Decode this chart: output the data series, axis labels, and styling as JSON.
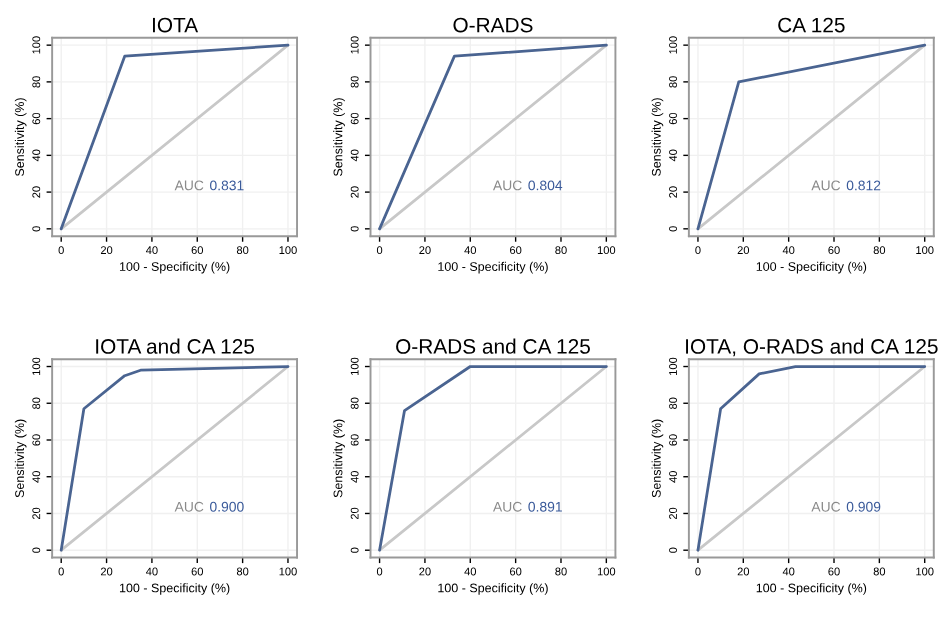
{
  "chart_data": [
    {
      "type": "line",
      "title": "IOTA",
      "xlabel": "100 - Specificity (%)",
      "ylabel": "Sensitivity (%)",
      "xlim": [
        -4,
        104
      ],
      "ylim": [
        -4,
        104
      ],
      "xticks": [
        0,
        20,
        40,
        60,
        80,
        100
      ],
      "yticks": [
        0,
        20,
        40,
        60,
        80,
        100
      ],
      "grid": true,
      "annotations": [
        "AUC",
        "0.831"
      ],
      "series": [
        {
          "x": [
            0,
            100
          ],
          "values": [
            0,
            100
          ],
          "color": "#c8c8c8"
        },
        {
          "x": [
            0,
            28,
            100
          ],
          "values": [
            0,
            94,
            100
          ],
          "color": "#4a6491"
        }
      ]
    },
    {
      "type": "line",
      "title": "O-RADS",
      "xlabel": "100 - Specificity (%)",
      "ylabel": "Sensitivity (%)",
      "xlim": [
        -4,
        104
      ],
      "ylim": [
        -4,
        104
      ],
      "xticks": [
        0,
        20,
        40,
        60,
        80,
        100
      ],
      "yticks": [
        0,
        20,
        40,
        60,
        80,
        100
      ],
      "grid": true,
      "annotations": [
        "AUC",
        "0.804"
      ],
      "series": [
        {
          "x": [
            0,
            100
          ],
          "values": [
            0,
            100
          ],
          "color": "#c8c8c8"
        },
        {
          "x": [
            0,
            33,
            100
          ],
          "values": [
            0,
            94,
            100
          ],
          "color": "#4a6491"
        }
      ]
    },
    {
      "type": "line",
      "title": "CA 125",
      "xlabel": "100 - Specificity (%)",
      "ylabel": "Sensitivity (%)",
      "xlim": [
        -4,
        104
      ],
      "ylim": [
        -4,
        104
      ],
      "xticks": [
        0,
        20,
        40,
        60,
        80,
        100
      ],
      "yticks": [
        0,
        20,
        40,
        60,
        80,
        100
      ],
      "grid": true,
      "annotations": [
        "AUC",
        "0.812"
      ],
      "series": [
        {
          "x": [
            0,
            100
          ],
          "values": [
            0,
            100
          ],
          "color": "#c8c8c8"
        },
        {
          "x": [
            0,
            18,
            100
          ],
          "values": [
            0,
            80,
            100
          ],
          "color": "#4a6491"
        }
      ]
    },
    {
      "type": "line",
      "title": "IOTA and CA 125",
      "xlabel": "100 - Specificity (%)",
      "ylabel": "Sensitivity (%)",
      "xlim": [
        -4,
        104
      ],
      "ylim": [
        -4,
        104
      ],
      "xticks": [
        0,
        20,
        40,
        60,
        80,
        100
      ],
      "yticks": [
        0,
        20,
        40,
        60,
        80,
        100
      ],
      "grid": true,
      "annotations": [
        "AUC",
        "0.900"
      ],
      "series": [
        {
          "x": [
            0,
            100
          ],
          "values": [
            0,
            100
          ],
          "color": "#c8c8c8"
        },
        {
          "x": [
            0,
            10,
            28,
            35,
            100
          ],
          "values": [
            0,
            77,
            95,
            98,
            100
          ],
          "color": "#4a6491"
        }
      ]
    },
    {
      "type": "line",
      "title": "O-RADS and CA 125",
      "xlabel": "100 - Specificity (%)",
      "ylabel": "Sensitivity (%)",
      "xlim": [
        -4,
        104
      ],
      "ylim": [
        -4,
        104
      ],
      "xticks": [
        0,
        20,
        40,
        60,
        80,
        100
      ],
      "yticks": [
        0,
        20,
        40,
        60,
        80,
        100
      ],
      "grid": true,
      "annotations": [
        "AUC",
        "0.891"
      ],
      "series": [
        {
          "x": [
            0,
            100
          ],
          "values": [
            0,
            100
          ],
          "color": "#c8c8c8"
        },
        {
          "x": [
            0,
            11,
            40,
            100
          ],
          "values": [
            0,
            76,
            100,
            100
          ],
          "color": "#4a6491"
        }
      ]
    },
    {
      "type": "line",
      "title": "IOTA, O-RADS and CA 125",
      "xlabel": "100 - Specificity (%)",
      "ylabel": "Sensitivity (%)",
      "xlim": [
        -4,
        104
      ],
      "ylim": [
        -4,
        104
      ],
      "xticks": [
        0,
        20,
        40,
        60,
        80,
        100
      ],
      "yticks": [
        0,
        20,
        40,
        60,
        80,
        100
      ],
      "grid": true,
      "annotations": [
        "AUC",
        "0.909"
      ],
      "series": [
        {
          "x": [
            0,
            100
          ],
          "values": [
            0,
            100
          ],
          "color": "#c8c8c8"
        },
        {
          "x": [
            0,
            10,
            27,
            43,
            100
          ],
          "values": [
            0,
            77,
            96,
            100,
            100
          ],
          "color": "#4a6491"
        }
      ]
    }
  ]
}
